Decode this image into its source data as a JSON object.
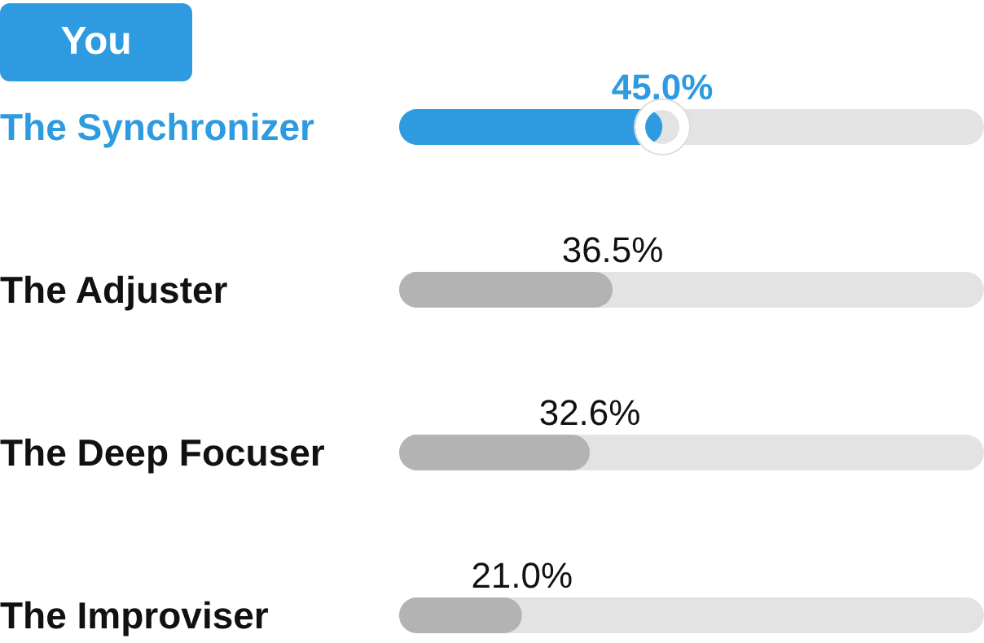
{
  "chart_data": {
    "type": "bar",
    "orientation": "horizontal",
    "categories": [
      "The Synchronizer",
      "The Adjuster",
      "The Deep Focuser",
      "The Improviser"
    ],
    "values": [
      45.0,
      36.5,
      32.6,
      21.0
    ],
    "value_labels": [
      "45.0%",
      "36.5%",
      "32.6%",
      "21.0%"
    ],
    "colors": [
      "#2e9be0",
      "#b3b3b3",
      "#b3b3b3",
      "#b3b3b3"
    ],
    "xlim": [
      0,
      100
    ],
    "tick_labels": false,
    "annotations": [
      "You"
    ]
  }
}
